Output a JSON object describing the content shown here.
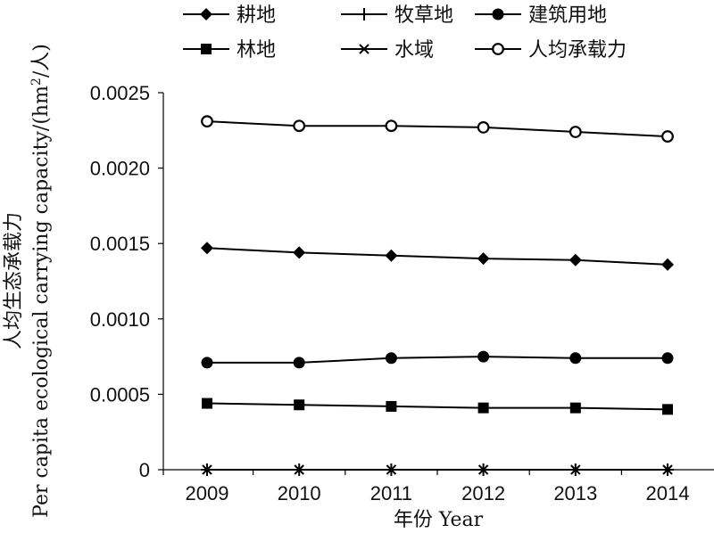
{
  "chart_data": {
    "type": "line",
    "x": [
      "2009",
      "2010",
      "2011",
      "2012",
      "2013",
      "2014"
    ],
    "xlabel": "年份 Year",
    "ylabel_cn": "人均生态承载力",
    "ylabel_en_prefix": "Per capita ecological carrying capacity/(hm",
    "ylabel_en_sup": "2",
    "ylabel_en_suffix": "/人)",
    "ylim": [
      0,
      0.0025
    ],
    "yticks": [
      "0",
      "0.0005",
      "0.0010",
      "0.0015",
      "0.0020",
      "0.0025"
    ],
    "grid": false,
    "legend_position": "top",
    "series": [
      {
        "name": "耕地",
        "marker": "diamond",
        "values": [
          0.00147,
          0.00144,
          0.00142,
          0.0014,
          0.00139,
          0.00136
        ]
      },
      {
        "name": "牧草地",
        "marker": "plus",
        "values": [
          0,
          0,
          0,
          0,
          0,
          0
        ]
      },
      {
        "name": "建筑用地",
        "marker": "filled-circle",
        "values": [
          0.00071,
          0.00071,
          0.00074,
          0.00075,
          0.00074,
          0.00074
        ]
      },
      {
        "name": "林地",
        "marker": "square",
        "values": [
          0.00044,
          0.00043,
          0.00042,
          0.00041,
          0.00041,
          0.0004
        ]
      },
      {
        "name": "水域",
        "marker": "x",
        "values": [
          0,
          0,
          0,
          0,
          0,
          0
        ]
      },
      {
        "name": "人均承载力",
        "marker": "open-circle",
        "values": [
          0.00231,
          0.00228,
          0.00228,
          0.00227,
          0.00224,
          0.00221
        ]
      }
    ]
  }
}
